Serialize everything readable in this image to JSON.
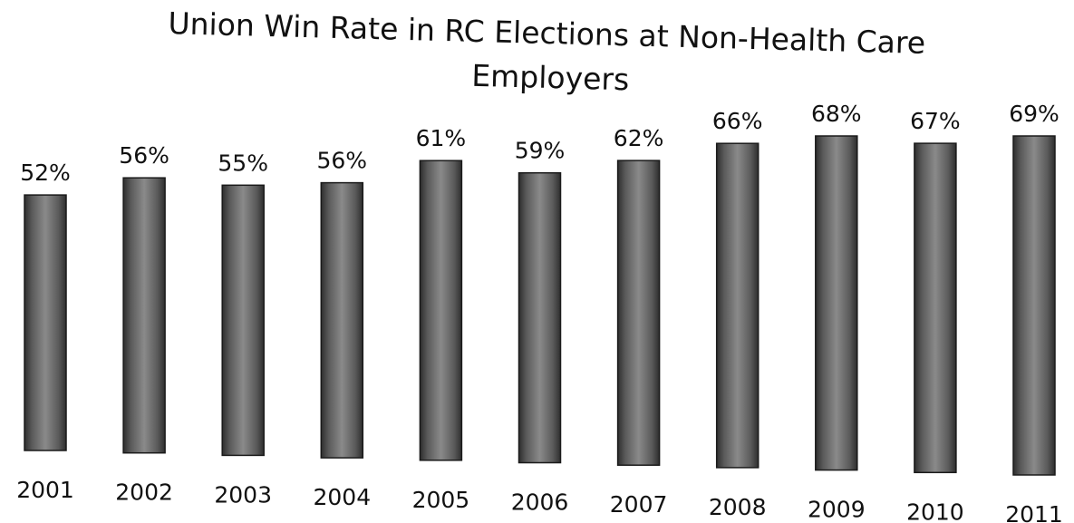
{
  "chart_data": {
    "type": "bar",
    "title_lines": [
      "Union Win Rate in RC Elections at Non-Health Care",
      "Employers"
    ],
    "xlabel": "",
    "ylabel": "",
    "categories": [
      "2001",
      "2002",
      "2003",
      "2004",
      "2005",
      "2006",
      "2007",
      "2008",
      "2009",
      "2010",
      "2011"
    ],
    "values": [
      52,
      56,
      55,
      56,
      61,
      59,
      62,
      66,
      68,
      67,
      69
    ],
    "value_labels": [
      "52%",
      "56%",
      "55%",
      "56%",
      "61%",
      "59%",
      "62%",
      "66%",
      "68%",
      "67%",
      "69%"
    ],
    "ylim": [
      0,
      69
    ],
    "grid": false,
    "legend": "none",
    "bar_color": "#6e6e6e"
  }
}
